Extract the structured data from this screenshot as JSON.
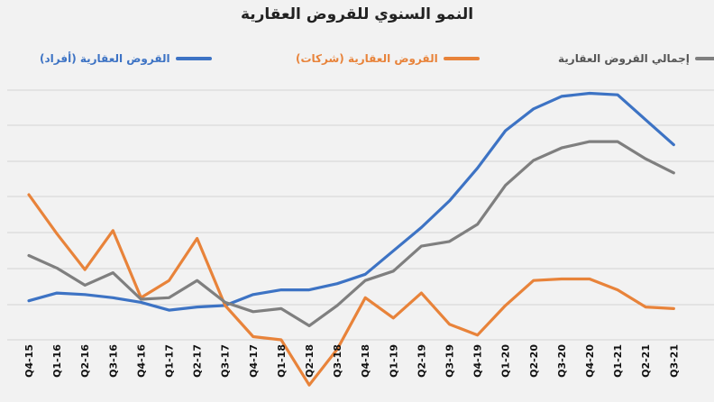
{
  "chart_data": {
    "type": "line",
    "title": "النمو السنوي للقروض العقارية",
    "xlabel": "",
    "ylabel": "",
    "grid": true,
    "legend_position": "top",
    "categories": [
      "Q4-15",
      "Q1-16",
      "Q2-16",
      "Q3-16",
      "Q4-16",
      "Q1-17",
      "Q2-17",
      "Q3-17",
      "Q4-17",
      "Q1-18",
      "Q2-18",
      "Q3-18",
      "Q4-18",
      "Q1-19",
      "Q2-19",
      "Q3-19",
      "Q4-19",
      "Q1-20",
      "Q2-20",
      "Q3-20",
      "Q4-20",
      "Q1-21",
      "Q2-21",
      "Q3-21"
    ],
    "ylim": [
      -2.6,
      13.4
    ],
    "series": [
      {
        "name": "القروض العقارية (أفراد)",
        "color": "#3d73c4",
        "values": [
          -0.1,
          0.4,
          0.3,
          0.1,
          -0.2,
          -0.7,
          -0.5,
          -0.4,
          0.3,
          0.6,
          0.6,
          1.0,
          1.6,
          3.1,
          4.6,
          6.3,
          8.4,
          10.8,
          12.2,
          13.0,
          13.2,
          13.1,
          11.5,
          9.9
        ]
      },
      {
        "name": "القروض العقارية (شركات)",
        "color": "#e8833a",
        "values": [
          6.7,
          4.2,
          1.9,
          4.4,
          0.1,
          1.2,
          3.9,
          -0.4,
          -2.4,
          -2.6,
          -5.5,
          -3.2,
          0.1,
          -1.2,
          0.4,
          -1.6,
          -2.3,
          -0.4,
          1.2,
          1.3,
          1.3,
          0.6,
          -0.5,
          -0.6
        ]
      },
      {
        "name": "إجمالي القروض العقارية",
        "color": "#7f7f7f",
        "values": [
          2.8,
          2.0,
          0.9,
          1.7,
          0.0,
          0.1,
          1.2,
          -0.2,
          -0.8,
          -0.6,
          -1.7,
          -0.4,
          1.2,
          1.8,
          3.4,
          3.7,
          4.8,
          7.3,
          8.9,
          9.7,
          10.1,
          10.1,
          9.0,
          8.1
        ]
      }
    ]
  }
}
